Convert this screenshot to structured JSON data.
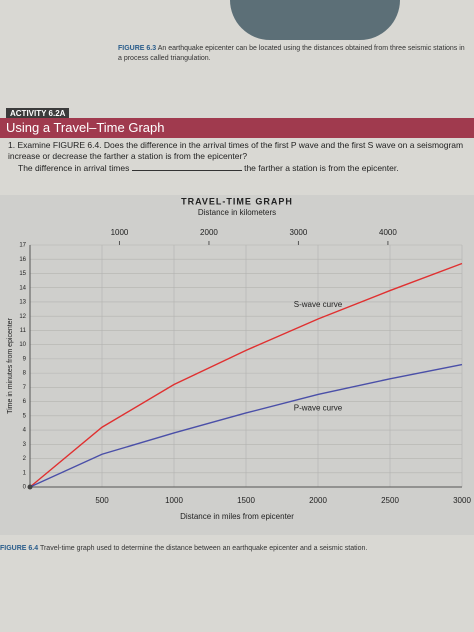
{
  "figure_6_3": {
    "label": "FIGURE 6.3",
    "text": "An earthquake epicenter can be located using the distances obtained from three seismic stations in a process called triangulation."
  },
  "activity": {
    "label": "ACTIVITY 6.2A",
    "title": "Using a Travel–Time Graph",
    "question": "1. Examine FIGURE 6.4. Does the difference in the arrival times of the first P wave and the first S wave on a seismogram increase or decrease the farther a station is from the epicenter?",
    "answer_start": "The difference in arrival times",
    "answer_end": "the farther a station is from the epicenter."
  },
  "chart_data": {
    "type": "line",
    "title": "TRAVEL-TIME GRAPH",
    "xlabel": "Distance in miles from epicenter",
    "x2label": "Distance in kilometers",
    "ylabel": "Time in minutes from epicenter",
    "x": [
      0,
      500,
      1000,
      1500,
      2000,
      2500,
      3000
    ],
    "series": [
      {
        "name": "S-wave curve",
        "color": "#e03030",
        "values": [
          0,
          4.2,
          7.2,
          9.6,
          11.8,
          13.8,
          15.7
        ]
      },
      {
        "name": "P-wave curve",
        "color": "#4a4fa8",
        "values": [
          0,
          2.3,
          3.8,
          5.2,
          6.5,
          7.6,
          8.6
        ]
      }
    ],
    "xlim": [
      0,
      3000
    ],
    "xticks": [
      500,
      1000,
      1500,
      2000,
      2500,
      3000
    ],
    "x2lim": [
      0,
      4828
    ],
    "x2ticks": [
      1000,
      2000,
      3000,
      4000
    ],
    "ylim": [
      0,
      17
    ],
    "yticks": [
      0,
      1,
      2,
      3,
      4,
      5,
      6,
      7,
      8,
      9,
      10,
      11,
      12,
      13,
      14,
      15,
      16,
      17
    ],
    "grid": true
  },
  "figure_6_4": {
    "label": "FIGURE 6.4",
    "text": "Travel-time graph used to determine the distance between an earthquake epicenter and a seismic station."
  }
}
